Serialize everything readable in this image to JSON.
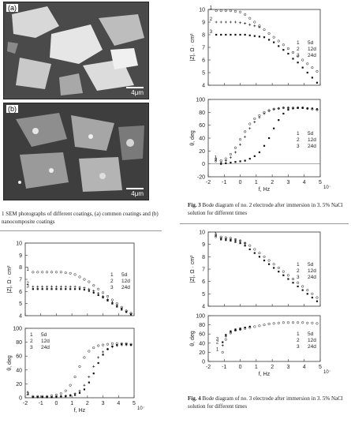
{
  "sem": {
    "panel_a": {
      "label": "(a)",
      "scale": "4μm"
    },
    "panel_b": {
      "label": "(b)",
      "scale": "4μm"
    },
    "caption": "1 SEM photographs of different coatings, (a) common coatings and (b) nanocomposite coatings"
  },
  "fig3": {
    "caption_label": "Fig. 3",
    "caption": "Bode diagram of no. 2 electrode after immersion in 3. 5% NaCl solution for different times"
  },
  "fig4": {
    "caption_label": "Fig. 4",
    "caption": "Bode diagram of no. 3 electrode after immersion in 3. 5% NaCl solution for different times"
  },
  "chart_data": [
    {
      "id": "fig3-top",
      "type": "scatter",
      "ylabel": "|Z|, Ω · cm²",
      "xlabel": "",
      "ylim": [
        4,
        10
      ],
      "xlim": [
        -2,
        5
      ],
      "yticks": [
        "4",
        "5",
        "6",
        "7",
        "8",
        "9",
        "10"
      ],
      "xticks": [],
      "legend": [
        {
          "num": "1",
          "label": "5d"
        },
        {
          "num": "2",
          "label": "12d"
        },
        {
          "num": "3",
          "label": "24d"
        }
      ],
      "legend_position": "right",
      "series": [
        {
          "name": "5d",
          "label_mark": "1",
          "x": [
            -1.5,
            -1.2,
            -0.9,
            -0.6,
            -0.3,
            0,
            0.3,
            0.6,
            0.9,
            1.2,
            1.5,
            1.8,
            2.1,
            2.4,
            2.7,
            3.0,
            3.3,
            3.6,
            3.9,
            4.2,
            4.5,
            4.8
          ],
          "y": [
            9.9,
            9.9,
            9.9,
            9.9,
            9.85,
            9.8,
            9.6,
            9.3,
            9.0,
            8.7,
            8.4,
            8.1,
            7.8,
            7.5,
            7.2,
            6.9,
            6.6,
            6.3,
            6.0,
            5.7,
            5.4,
            5.1
          ]
        },
        {
          "name": "12d",
          "label_mark": "2",
          "x": [
            -1.5,
            -1.2,
            -0.9,
            -0.6,
            -0.3,
            0,
            0.3,
            0.6,
            0.9,
            1.2
          ],
          "y": [
            9.0,
            9.0,
            9.0,
            9.0,
            9.0,
            8.95,
            8.9,
            8.8,
            8.7,
            8.6
          ]
        },
        {
          "name": "24d",
          "label_mark": "3",
          "x": [
            -1.5,
            -1.2,
            -0.9,
            -0.6,
            -0.3,
            0,
            0.3,
            0.6,
            0.9,
            1.2,
            1.5,
            1.8,
            2.1,
            2.4,
            2.7,
            3.0,
            3.3,
            3.6,
            3.9,
            4.2,
            4.5,
            4.8
          ],
          "y": [
            8.0,
            8.0,
            8.0,
            8.0,
            8.0,
            8.0,
            8.0,
            7.95,
            7.9,
            7.85,
            7.8,
            7.6,
            7.4,
            7.1,
            6.8,
            6.5,
            6.1,
            5.8,
            5.4,
            5.0,
            4.6,
            4.2
          ]
        }
      ]
    },
    {
      "id": "fig3-bottom",
      "type": "scatter",
      "ylabel": "θ, deg",
      "xlabel": "f, Hz",
      "ylim": [
        -20,
        100
      ],
      "xlim": [
        -2,
        5
      ],
      "yticks": [
        "-20",
        "0",
        "20",
        "40",
        "60",
        "80",
        "100"
      ],
      "xticks": [
        "-2",
        "-1",
        "0",
        "1",
        "2",
        "3",
        "4",
        "5"
      ],
      "x_exp": "10⁻",
      "legend": [
        {
          "num": "1",
          "label": "5d"
        },
        {
          "num": "2",
          "label": "12d"
        },
        {
          "num": "3",
          "label": "24d"
        }
      ],
      "legend_position": "right",
      "series": [
        {
          "name": "5d",
          "label_mark": "1",
          "x": [
            -1.2,
            -0.9,
            -0.6,
            -0.3,
            0,
            0.3,
            0.6,
            0.9,
            1.2,
            1.5,
            1.8,
            2.1,
            2.4,
            2.7,
            3.0,
            3.3,
            3.6,
            3.9,
            4.2,
            4.5,
            4.8
          ],
          "y": [
            5,
            8,
            15,
            25,
            38,
            50,
            62,
            70,
            75,
            80,
            83,
            85,
            86,
            87,
            87,
            87,
            87,
            87,
            86,
            85,
            84
          ]
        },
        {
          "name": "12d",
          "label_mark": "2",
          "x": [
            -1.2,
            -0.9,
            -0.6,
            -0.3,
            0,
            0.3,
            0.6,
            0.9,
            1.2,
            1.5,
            1.8,
            2.1,
            2.4,
            2.7,
            3.0
          ],
          "y": [
            2,
            5,
            10,
            18,
            30,
            42,
            55,
            65,
            72,
            78,
            82,
            85,
            86,
            87,
            87
          ]
        },
        {
          "name": "24d",
          "label_mark": "3",
          "x": [
            -1.2,
            -0.9,
            -0.6,
            -0.3,
            0,
            0.3,
            0.6,
            0.9,
            1.2,
            1.5,
            1.8,
            2.1,
            2.4,
            2.7,
            3.0,
            3.3,
            3.6,
            3.9,
            4.2,
            4.5,
            4.8
          ],
          "y": [
            0,
            1,
            2,
            3,
            4,
            5,
            8,
            12,
            18,
            28,
            40,
            55,
            68,
            78,
            84,
            86,
            87,
            87,
            86,
            86,
            85
          ]
        }
      ]
    },
    {
      "id": "fig2-top",
      "type": "scatter",
      "ylabel": "|Z|, Ω · cm²",
      "xlabel": "",
      "ylim": [
        4,
        10
      ],
      "xlim": [
        -2,
        5
      ],
      "yticks": [
        "4",
        "5",
        "6",
        "7",
        "8",
        "9",
        "10"
      ],
      "xticks": [],
      "legend": [
        {
          "num": "1",
          "label": "5d"
        },
        {
          "num": "2",
          "label": "12d"
        },
        {
          "num": "3",
          "label": "24d"
        }
      ],
      "legend_position": "right",
      "series": [
        {
          "name": "5d",
          "label_mark": "1",
          "x": [
            -1.5,
            -1.2,
            -0.9,
            -0.6,
            -0.3,
            0,
            0.3,
            0.6,
            0.9,
            1.2,
            1.5,
            1.8,
            2.1,
            2.4,
            2.7,
            3.0,
            3.3,
            3.6,
            3.9,
            4.2,
            4.5,
            4.8
          ],
          "y": [
            7.6,
            7.6,
            7.6,
            7.6,
            7.6,
            7.6,
            7.6,
            7.55,
            7.5,
            7.4,
            7.2,
            7.0,
            6.8,
            6.5,
            6.2,
            5.9,
            5.6,
            5.3,
            5.0,
            4.7,
            4.4,
            4.2
          ]
        },
        {
          "name": "12d",
          "label_mark": "2",
          "x": [
            -1.5,
            -1.2,
            -0.9,
            -0.6,
            -0.3,
            0,
            0.3,
            0.6,
            0.9,
            1.2,
            1.5,
            1.8,
            2.1,
            2.4,
            2.7,
            3.0,
            3.3,
            3.6,
            3.9,
            4.2,
            4.5,
            4.8
          ],
          "y": [
            6.4,
            6.4,
            6.4,
            6.4,
            6.4,
            6.4,
            6.4,
            6.4,
            6.4,
            6.4,
            6.35,
            6.3,
            6.2,
            6.05,
            5.85,
            5.6,
            5.35,
            5.1,
            4.85,
            4.6,
            4.35,
            4.15
          ]
        },
        {
          "name": "24d",
          "label_mark": "3",
          "x": [
            -1.5,
            -1.2,
            -0.9,
            -0.6,
            -0.3,
            0,
            0.3,
            0.6,
            0.9,
            1.2,
            1.5,
            1.8,
            2.1,
            2.4,
            2.7,
            3.0,
            3.3,
            3.6,
            3.9,
            4.2,
            4.5,
            4.8
          ],
          "y": [
            6.2,
            6.2,
            6.2,
            6.2,
            6.2,
            6.2,
            6.2,
            6.2,
            6.2,
            6.2,
            6.2,
            6.15,
            6.05,
            5.9,
            5.7,
            5.5,
            5.25,
            5.0,
            4.75,
            4.5,
            4.3,
            4.1
          ]
        }
      ]
    },
    {
      "id": "fig2-bottom",
      "type": "scatter",
      "ylabel": "θ, deg",
      "xlabel": "f, Hz",
      "ylim": [
        0,
        100
      ],
      "xlim": [
        -2,
        5
      ],
      "yticks": [
        "0",
        "20",
        "40",
        "60",
        "80",
        "100"
      ],
      "xticks": [
        "-2",
        "-1",
        "0",
        "1",
        "2",
        "3",
        "4",
        "5"
      ],
      "x_exp": "10⁻",
      "legend": [
        {
          "num": "1",
          "label": "5d"
        },
        {
          "num": "2",
          "label": "12d"
        },
        {
          "num": "3",
          "label": "24d"
        }
      ],
      "legend_position": "top-left",
      "series": [
        {
          "name": "5d",
          "label_mark": "1",
          "x": [
            -1.5,
            -1.2,
            -0.9,
            -0.6,
            -0.3,
            0,
            0.3,
            0.6,
            0.9,
            1.2,
            1.5,
            1.8,
            2.1,
            2.4,
            2.7,
            3.0,
            3.3,
            3.6,
            3.9,
            4.2,
            4.5,
            4.8
          ],
          "y": [
            2,
            2,
            2,
            2,
            3,
            4,
            6,
            10,
            18,
            30,
            45,
            58,
            67,
            72,
            75,
            76,
            77,
            78,
            78,
            78,
            78,
            77
          ]
        },
        {
          "name": "12d",
          "label_mark": "2",
          "x": [
            -1.5,
            -1.2,
            -0.9,
            -0.6,
            -0.3,
            0,
            0.3,
            0.6,
            0.9,
            1.2,
            1.5,
            1.8,
            2.1,
            2.4,
            2.7,
            3.0,
            3.3,
            3.6,
            3.9,
            4.2,
            4.5,
            4.8
          ],
          "y": [
            1,
            1,
            1,
            1,
            1,
            2,
            2,
            3,
            4,
            6,
            10,
            18,
            30,
            45,
            58,
            66,
            70,
            73,
            75,
            76,
            76,
            76
          ]
        },
        {
          "name": "24d",
          "label_mark": "3",
          "x": [
            -1.5,
            -1.2,
            -0.9,
            -0.6,
            -0.3,
            0,
            0.3,
            0.6,
            0.9,
            1.2,
            1.5,
            1.8,
            2.1,
            2.4,
            2.7,
            3.0,
            3.3,
            3.6,
            3.9,
            4.2,
            4.5,
            4.8
          ],
          "y": [
            1,
            1,
            1,
            1,
            1,
            1,
            2,
            2,
            3,
            4,
            7,
            12,
            22,
            35,
            50,
            62,
            70,
            74,
            76,
            77,
            77,
            76
          ]
        }
      ]
    },
    {
      "id": "fig4-top",
      "type": "scatter",
      "ylabel": "|Z|, Ω · cm²",
      "xlabel": "",
      "ylim": [
        4,
        10
      ],
      "xlim": [
        -2,
        5
      ],
      "yticks": [
        "4",
        "5",
        "6",
        "7",
        "8",
        "9",
        "10"
      ],
      "xticks": [],
      "legend": [
        {
          "num": "1",
          "label": "5d"
        },
        {
          "num": "2",
          "label": "12d"
        },
        {
          "num": "3",
          "label": "24d"
        }
      ],
      "legend_position": "right",
      "series": [
        {
          "name": "5d",
          "label_mark": "1",
          "x": [
            -1.2,
            -0.9,
            -0.6,
            -0.3,
            0,
            0.3,
            0.6,
            0.9,
            1.2,
            1.5,
            1.8,
            2.1,
            2.4,
            2.7,
            3.0,
            3.3,
            3.6,
            3.9,
            4.2,
            4.5,
            4.8
          ],
          "y": [
            9.6,
            9.55,
            9.5,
            9.4,
            9.3,
            9.1,
            8.9,
            8.6,
            8.3,
            8.0,
            7.7,
            7.4,
            7.1,
            6.8,
            6.5,
            6.2,
            5.9,
            5.6,
            5.3,
            5.0,
            4.7
          ]
        },
        {
          "name": "12d",
          "label_mark": "2",
          "x": [
            -1.2,
            -0.9,
            -0.6,
            -0.3,
            0,
            0.3
          ],
          "y": [
            9.5,
            9.45,
            9.4,
            9.35,
            9.25,
            9.1
          ]
        },
        {
          "name": "24d",
          "label_mark": "3",
          "x": [
            -1.2,
            -0.9,
            -0.6,
            -0.3,
            0,
            0.3,
            0.6,
            0.9,
            1.2,
            1.5,
            1.8,
            2.1,
            2.4,
            2.7,
            3.0,
            3.3,
            3.6,
            3.9,
            4.2,
            4.5,
            4.8
          ],
          "y": [
            9.4,
            9.35,
            9.3,
            9.2,
            9.1,
            8.9,
            8.6,
            8.3,
            8.0,
            7.7,
            7.4,
            7.1,
            6.8,
            6.5,
            6.2,
            5.9,
            5.6,
            5.3,
            5.0,
            4.7,
            4.4
          ]
        }
      ]
    },
    {
      "id": "fig4-bottom",
      "type": "scatter",
      "ylabel": "θ, deg",
      "xlabel": "f, Hz",
      "ylim": [
        0,
        100
      ],
      "xlim": [
        -2,
        5
      ],
      "yticks": [
        "0",
        "20",
        "40",
        "60",
        "80",
        "100"
      ],
      "xticks": [
        "-2",
        "-1",
        "0",
        "1",
        "2",
        "3",
        "4",
        "5"
      ],
      "x_exp": "10⁻",
      "legend": [
        {
          "num": "1",
          "label": "5d"
        },
        {
          "num": "2",
          "label": "12d"
        },
        {
          "num": "3",
          "label": "24d"
        }
      ],
      "legend_position": "right",
      "series": [
        {
          "name": "5d",
          "label_mark": "1",
          "x": [
            -1.1,
            -0.9,
            -0.6,
            -0.3,
            0,
            0.3,
            0.6,
            0.9,
            1.2,
            1.5,
            1.8,
            2.1,
            2.4,
            2.7,
            3.0,
            3.3,
            3.6,
            3.9,
            4.2,
            4.5,
            4.8
          ],
          "y": [
            20,
            48,
            62,
            68,
            70,
            72,
            74,
            76,
            78,
            80,
            82,
            83,
            84,
            85,
            85,
            85,
            85,
            85,
            84,
            84,
            83
          ]
        },
        {
          "name": "12d",
          "label_mark": "2",
          "x": [
            -1.1,
            -0.9,
            -0.6,
            -0.3,
            0
          ],
          "y": [
            35,
            55,
            64,
            68,
            70
          ]
        },
        {
          "name": "24d",
          "label_mark": "3",
          "x": [
            -1.1,
            -0.9,
            -0.6,
            -0.3,
            0,
            0.3,
            0.6
          ],
          "y": [
            42,
            58,
            66,
            70,
            72,
            74,
            76
          ]
        }
      ]
    }
  ]
}
